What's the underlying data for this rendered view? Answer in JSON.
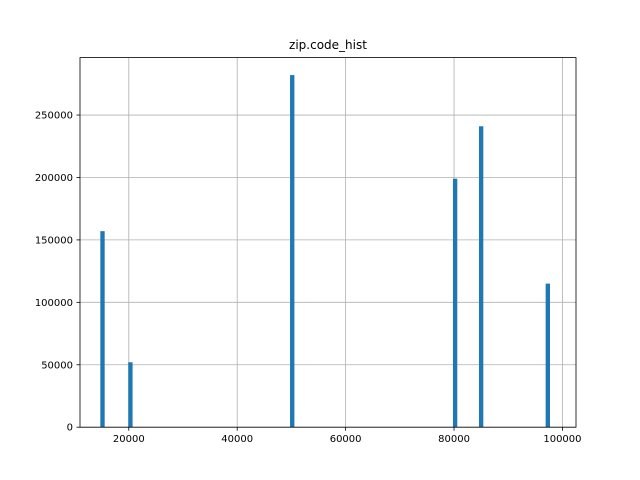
{
  "chart_data": {
    "type": "bar",
    "title": "zip.code_hist",
    "xlabel": "",
    "ylabel": "",
    "xlim": [
      11000,
      102500
    ],
    "ylim": [
      0,
      296000
    ],
    "grid": true,
    "bar_color": "#1f77b4",
    "bin_width": 800,
    "x_ticks": [
      {
        "value": 20000,
        "label": "20000"
      },
      {
        "value": 40000,
        "label": "40000"
      },
      {
        "value": 60000,
        "label": "60000"
      },
      {
        "value": 80000,
        "label": "80000"
      },
      {
        "value": 100000,
        "label": "100000"
      }
    ],
    "y_ticks": [
      {
        "value": 0,
        "label": "0"
      },
      {
        "value": 50000,
        "label": "50000"
      },
      {
        "value": 100000,
        "label": "100000"
      },
      {
        "value": 150000,
        "label": "150000"
      },
      {
        "value": 200000,
        "label": "200000"
      },
      {
        "value": 250000,
        "label": "250000"
      }
    ],
    "bins": [
      {
        "x": 15150,
        "value": 157000
      },
      {
        "x": 20300,
        "value": 52000
      },
      {
        "x": 50150,
        "value": 282000
      },
      {
        "x": 80200,
        "value": 199000
      },
      {
        "x": 85000,
        "value": 241000
      },
      {
        "x": 97300,
        "value": 115000
      }
    ]
  }
}
